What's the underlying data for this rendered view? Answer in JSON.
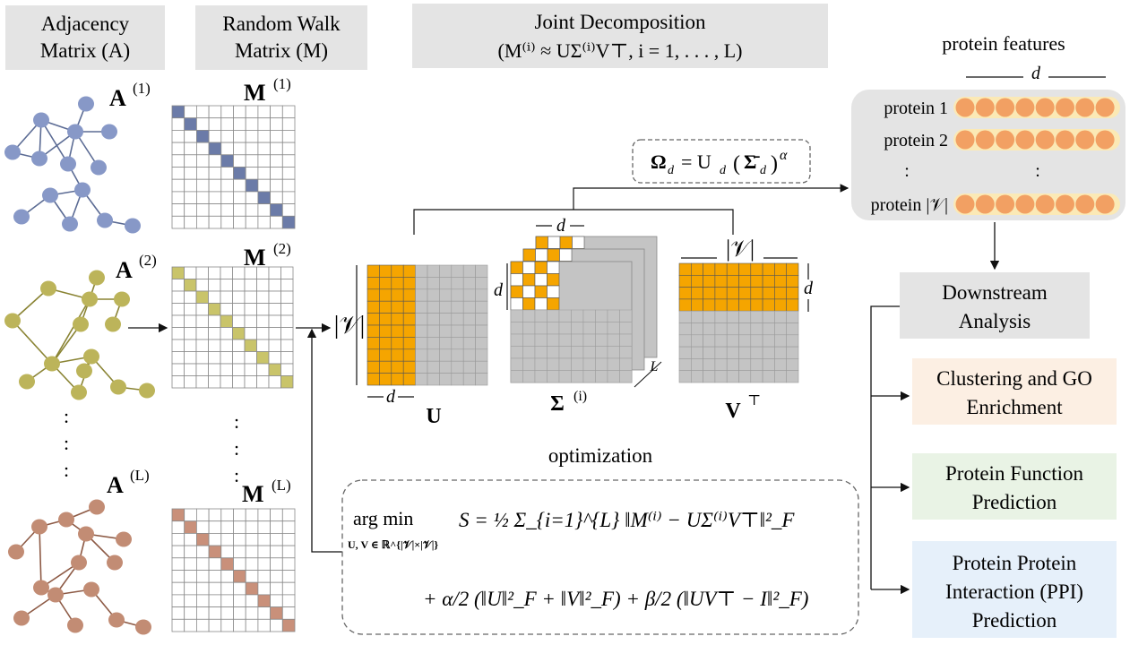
{
  "colors": {
    "graph1": "#8798c7",
    "graph1_edge": "#5b6b94",
    "graph2": "#bcb45a",
    "graph2_edge": "#8a8434",
    "graphL": "#c28c74",
    "graphL_edge": "#8d5a45",
    "diag1": "#6b7ba8",
    "diag2": "#c9c46a",
    "diagL": "#c9907a",
    "orange": "#f5a500",
    "gray_cell": "#c4c4c4",
    "header_bg": "#e4e4e4",
    "feature_dot": "#f2a063",
    "feature_row": "#fbe9b5",
    "feature_panel": "#e4e4e4",
    "clustering_bg": "#fcefe3",
    "function_bg": "#e9f3e5",
    "ppi_bg": "#e6f0fa",
    "downstream_bg": "#e4e4e4"
  },
  "headers": {
    "adjacency": [
      "Adjacency",
      "Matrix (A)"
    ],
    "random_walk": [
      "Random Walk",
      "Matrix (M)"
    ],
    "joint": [
      "Joint Decomposition",
      "(M⁽ⁱ⁾ ≈ UΣ⁽ⁱ⁾V⊤, i = 1, . . . , L)"
    ]
  },
  "graphs": [
    {
      "label": "A",
      "sup": "(1)"
    },
    {
      "label": "A",
      "sup": "(2)"
    },
    {
      "label": "A",
      "sup": "(L)"
    }
  ],
  "matrices": [
    {
      "label": "M",
      "sup": "(1)"
    },
    {
      "label": "M",
      "sup": "(2)"
    },
    {
      "label": "M",
      "sup": "(L)"
    }
  ],
  "decomposition": {
    "u_label": "U",
    "sigma_label": "Σ",
    "sigma_sup": "(i)",
    "v_label": "V",
    "v_sup": "⊤",
    "d": "d",
    "v_size": "|𝒱|",
    "l": "L",
    "omega_formula": "Ω_d = U_d (Σ̄_d)^α",
    "omega_base": "Ω",
    "omega_sub": "d",
    "omega_rhs": "= U",
    "omega_rhs_sub": "d",
    "omega_paren_open": "(",
    "omega_sigma": "Σ̄",
    "omega_sigma_sub": "d",
    "omega_paren_close": ")",
    "omega_alpha": "α"
  },
  "features": {
    "title": "protein features",
    "dim": "d",
    "rows": [
      "protein 1",
      "protein 2",
      ":",
      "protein |𝒱|"
    ],
    "dots_per_row": 8
  },
  "downstream": {
    "title": [
      "Downstream",
      "Analysis"
    ],
    "tasks": [
      {
        "lines": [
          "Clustering and GO",
          "Enrichment"
        ]
      },
      {
        "lines": [
          "Protein Function",
          "Prediction"
        ]
      },
      {
        "lines": [
          "Protein Protein",
          "Interaction (PPI)",
          "Prediction"
        ]
      }
    ]
  },
  "optimization": {
    "title": "optimization",
    "argmin": "arg min",
    "argmin_sub": "U, V ∈ ℝ^{|𝒱|×|𝒱|}",
    "line1": "S = ½ Σ_{i=1}^{L} ‖M⁽ⁱ⁾ − UΣ⁽ⁱ⁾V⊤‖²_F",
    "line2": "+ α/2 (‖U‖²_F + ‖V‖²_F) + β/2 (‖UV⊤ − I‖²_F)"
  },
  "ellipsis": ":"
}
